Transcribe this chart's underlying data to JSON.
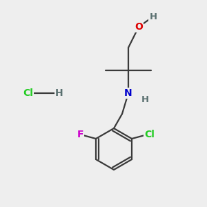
{
  "background_color": "#eeeeee",
  "atom_colors": {
    "C": "#3a3a3a",
    "H": "#5a7070",
    "O": "#dd0000",
    "N": "#0000cc",
    "Cl": "#22cc22",
    "F": "#cc00cc"
  },
  "bond_color": "#3a3a3a",
  "bond_width": 1.6,
  "figsize": [
    3.0,
    3.0
  ],
  "dpi": 100,
  "xlim": [
    0,
    10
  ],
  "ylim": [
    0,
    10
  ]
}
